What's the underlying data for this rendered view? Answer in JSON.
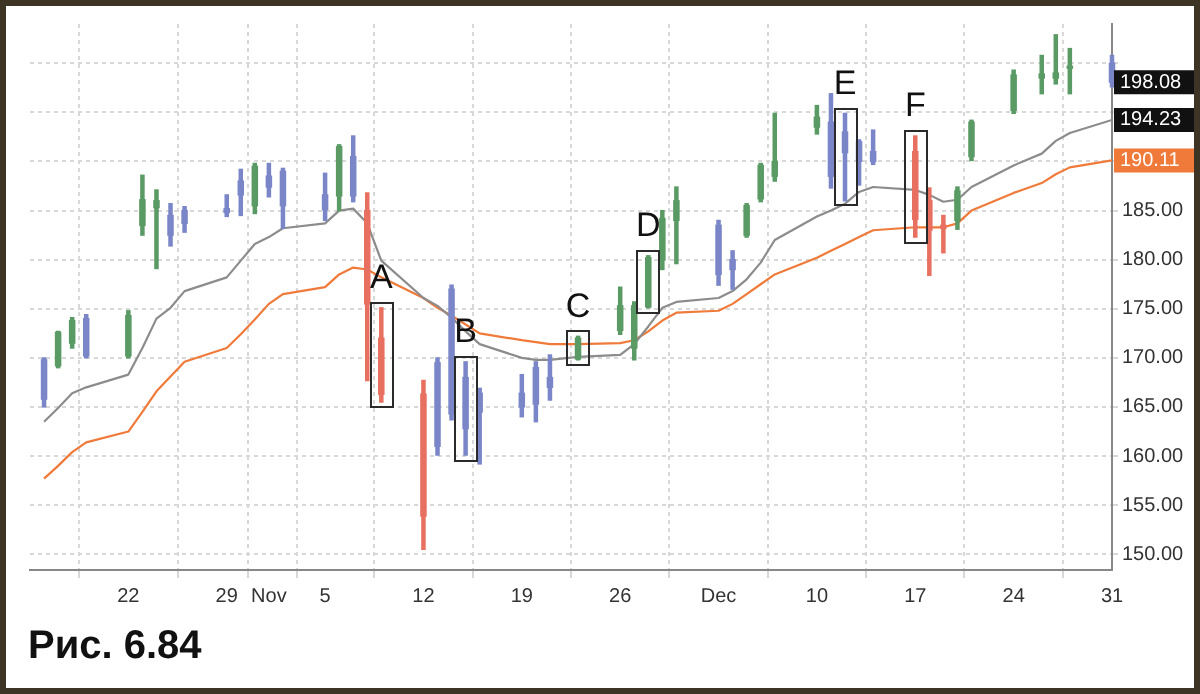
{
  "chart_data": {
    "type": "candlestick",
    "x": [
      "--10-16",
      "--10-17",
      "--10-18",
      "--10-19",
      "--10-22",
      "--10-23",
      "--10-24",
      "--10-25",
      "--10-26",
      "--10-29",
      "--10-30",
      "--10-31",
      "--11-01",
      "--11-02",
      "--11-05",
      "--11-06",
      "--11-07",
      "--11-08",
      "--11-09",
      "--11-12",
      "--11-13",
      "--11-14",
      "--11-15",
      "--11-16",
      "--11-19",
      "--11-20",
      "--11-21",
      "--11-23",
      "--11-26",
      "--11-27",
      "--11-28",
      "--11-29",
      "--11-30",
      "--12-03",
      "--12-04",
      "--12-05",
      "--12-06",
      "--12-07",
      "--12-10",
      "--12-11",
      "--12-12",
      "--12-13",
      "--12-14",
      "--12-17",
      "--12-18",
      "--12-19",
      "--12-20",
      "--12-21",
      "--12-24",
      "--12-26",
      "--12-27",
      "--12-28",
      "--12-31"
    ],
    "ohlc": [
      [
        169.8,
        170.0,
        165.0,
        165.8
      ],
      [
        169.2,
        172.7,
        169.0,
        172.6
      ],
      [
        171.5,
        174.1,
        171.0,
        173.8
      ],
      [
        174.0,
        174.4,
        170.0,
        170.2
      ],
      [
        170.2,
        174.8,
        170.0,
        174.3
      ],
      [
        183.5,
        188.6,
        182.5,
        186.1
      ],
      [
        185.3,
        187.1,
        179.1,
        186.0
      ],
      [
        184.5,
        185.7,
        181.4,
        182.5
      ],
      [
        185.0,
        185.4,
        182.8,
        183.7
      ],
      [
        185.2,
        186.6,
        184.4,
        184.8
      ],
      [
        188.0,
        189.2,
        184.5,
        186.6
      ],
      [
        185.5,
        189.8,
        184.7,
        189.5
      ],
      [
        188.5,
        189.8,
        186.4,
        187.4
      ],
      [
        189.0,
        189.3,
        183.2,
        185.5
      ],
      [
        186.6,
        188.8,
        184.0,
        185.1
      ],
      [
        186.5,
        191.7,
        185.0,
        191.5
      ],
      [
        190.5,
        192.6,
        185.9,
        186.5
      ],
      [
        185.0,
        186.8,
        167.7,
        175.5
      ],
      [
        172.0,
        175.1,
        165.5,
        166.3
      ],
      [
        166.3,
        167.7,
        150.5,
        153.9
      ],
      [
        169.5,
        170.0,
        160.1,
        161.0
      ],
      [
        177.0,
        177.4,
        163.7,
        164.3
      ],
      [
        168.0,
        169.6,
        160.1,
        162.8
      ],
      [
        166.4,
        166.9,
        159.2,
        164.5
      ],
      [
        166.4,
        168.3,
        164.0,
        165.0
      ],
      [
        169.0,
        169.6,
        163.5,
        165.3
      ],
      [
        168.0,
        170.3,
        165.7,
        167.0
      ],
      [
        169.9,
        172.2,
        169.8,
        172.0
      ],
      [
        172.8,
        177.2,
        172.4,
        175.3
      ],
      [
        171.0,
        175.7,
        169.8,
        175.3
      ],
      [
        175.2,
        180.4,
        175.1,
        180.2
      ],
      [
        180.0,
        185.0,
        179.0,
        184.2
      ],
      [
        184.0,
        187.4,
        179.6,
        186.0
      ],
      [
        183.5,
        184.0,
        177.4,
        178.5
      ],
      [
        180.0,
        180.9,
        177.0,
        179.0
      ],
      [
        182.5,
        185.7,
        182.3,
        185.5
      ],
      [
        186.2,
        189.8,
        185.9,
        189.6
      ],
      [
        188.5,
        194.9,
        188.0,
        190.0
      ],
      [
        193.5,
        195.7,
        192.8,
        194.5
      ],
      [
        194.0,
        196.9,
        187.3,
        188.5
      ],
      [
        193.0,
        194.9,
        186.0,
        190.9
      ],
      [
        192.0,
        192.2,
        187.6,
        190.0
      ],
      [
        191.0,
        193.2,
        189.7,
        190.0
      ],
      [
        191.0,
        192.6,
        182.3,
        184.1
      ],
      [
        186.0,
        187.3,
        178.4,
        183.0
      ],
      [
        183.5,
        184.5,
        180.7,
        183.2
      ],
      [
        184.0,
        187.4,
        183.1,
        187.0
      ],
      [
        190.5,
        194.2,
        190.1,
        194.0
      ],
      [
        195.2,
        199.3,
        194.9,
        198.8
      ],
      [
        198.5,
        200.8,
        196.9,
        198.9
      ],
      [
        198.5,
        202.9,
        197.9,
        199.0
      ],
      [
        199.5,
        201.5,
        196.9,
        199.6
      ],
      [
        200.0,
        200.8,
        197.6,
        198.08
      ]
    ],
    "colors": [
      "#7a86c8",
      "#5a9a64",
      "#5a9a64",
      "#7a86c8",
      "#5a9a64",
      "#5a9a64",
      "#5a9a64",
      "#7a86c8",
      "#7a86c8",
      "#7a86c8",
      "#7a86c8",
      "#5a9a64",
      "#7a86c8",
      "#7a86c8",
      "#7a86c8",
      "#5a9a64",
      "#7a86c8",
      "#e87060",
      "#e87060",
      "#e87060",
      "#7a86c8",
      "#7a86c8",
      "#7a86c8",
      "#7a86c8",
      "#7a86c8",
      "#7a86c8",
      "#7a86c8",
      "#5a9a64",
      "#5a9a64",
      "#5a9a64",
      "#5a9a64",
      "#5a9a64",
      "#5a9a64",
      "#7a86c8",
      "#7a86c8",
      "#5a9a64",
      "#5a9a64",
      "#5a9a64",
      "#5a9a64",
      "#7a86c8",
      "#7a86c8",
      "#7a86c8",
      "#7a86c8",
      "#e87060",
      "#e87060",
      "#e87060",
      "#5a9a64",
      "#5a9a64",
      "#5a9a64",
      "#5a9a64",
      "#5a9a64",
      "#5a9a64",
      "#7a86c8"
    ],
    "series": [
      {
        "type": "line",
        "color": "#8c8c8c",
        "values": [
          163.5,
          164.9,
          166.4,
          167.0,
          168.3,
          171.0,
          174.0,
          175.1,
          176.8,
          178.2,
          179.9,
          181.6,
          182.3,
          183.2,
          183.7,
          185.0,
          185.2,
          183.7,
          179.9,
          176.1,
          175.3,
          174.1,
          172.7,
          171.4,
          170.0,
          169.8,
          169.8,
          170.1,
          170.3,
          171.4,
          173.2,
          175.1,
          175.7,
          176.1,
          176.8,
          178.0,
          179.7,
          182.0,
          184.4,
          185.0,
          185.7,
          186.9,
          187.4,
          187.1,
          186.6,
          185.9,
          186.1,
          187.4,
          189.6,
          190.8,
          192.1,
          192.9,
          194.23
        ]
      },
      {
        "type": "line",
        "color": "#f07a3a",
        "values": [
          157.7,
          159.0,
          160.4,
          161.4,
          162.5,
          164.5,
          166.6,
          168.1,
          169.6,
          171.0,
          172.4,
          173.9,
          175.5,
          176.5,
          177.2,
          178.5,
          179.2,
          179.0,
          178.2,
          176.1,
          175.1,
          174.3,
          173.4,
          172.5,
          171.8,
          171.6,
          171.4,
          171.4,
          171.5,
          171.8,
          172.7,
          173.8,
          174.6,
          174.8,
          175.5,
          176.5,
          177.5,
          178.5,
          180.2,
          180.9,
          181.6,
          182.3,
          183.0,
          183.3,
          183.3,
          183.3,
          183.7,
          185.0,
          186.8,
          187.8,
          188.7,
          189.4,
          190.11
        ]
      }
    ],
    "ylim": [
      148.4,
      204
    ],
    "xlim": [
      "--10-15",
      "--12-31"
    ],
    "yticks": [
      {
        "value": 150,
        "label": "150.00"
      },
      {
        "value": 155,
        "label": "155.00"
      },
      {
        "value": 160,
        "label": "160.00"
      },
      {
        "value": 165,
        "label": "165.00"
      },
      {
        "value": 170,
        "label": "170.00"
      },
      {
        "value": 175,
        "label": "175.00"
      },
      {
        "value": 180,
        "label": "180.00"
      },
      {
        "value": 185,
        "label": "185.00"
      },
      {
        "value": 190,
        "label": null
      },
      {
        "value": 195,
        "label": null
      },
      {
        "value": 200,
        "label": null
      }
    ],
    "xticks": [
      {
        "value": "--10-22",
        "label": "22"
      },
      {
        "value": "--10-29",
        "label": "29"
      },
      {
        "value": "--11-01",
        "label": "Nov"
      },
      {
        "value": "--11-05",
        "label": "5"
      },
      {
        "value": "--11-12",
        "label": "12"
      },
      {
        "value": "--11-19",
        "label": "19"
      },
      {
        "value": "--11-26",
        "label": "26"
      },
      {
        "value": "--12-03",
        "label": "Dec"
      },
      {
        "value": "--12-10",
        "label": "10"
      },
      {
        "value": "--12-17",
        "label": "17"
      },
      {
        "value": "--12-24",
        "label": "24"
      },
      {
        "value": "--12-31",
        "label": "31"
      }
    ],
    "grid": true,
    "annotations": [
      {
        "text": "A",
        "x": "--11-09",
        "y": 175.1
      },
      {
        "text": "B",
        "x": "--11-15",
        "y": 169.6
      },
      {
        "text": "C",
        "x": "--11-23",
        "y": 172.2
      },
      {
        "text": "D",
        "x": "--11-28",
        "y": 180.4
      },
      {
        "text": "E",
        "x": "--12-12",
        "y": 194.9
      },
      {
        "text": "F",
        "x": "--12-17",
        "y": 192.6
      },
      {
        "text": "198.08",
        "x": "--12-31",
        "y": 198.08
      },
      {
        "text": "194.23",
        "x": "--12-31",
        "y": 194.23
      },
      {
        "text": "190.11",
        "x": "--12-31",
        "y": 190.11
      },
      "Рис. 6.84"
    ]
  }
}
